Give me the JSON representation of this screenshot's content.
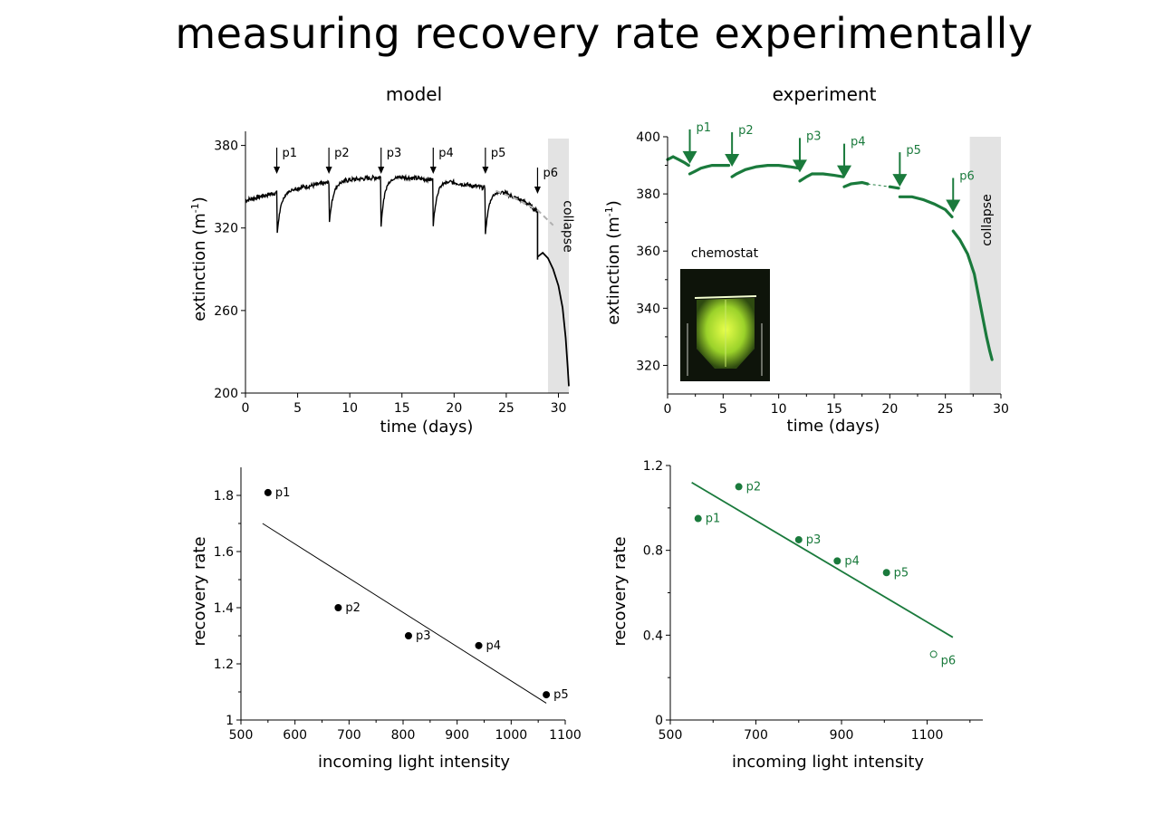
{
  "page": {
    "title": "measuring recovery rate experimentally"
  },
  "colors": {
    "model": "#000000",
    "experiment": "#1a7a3c",
    "collapse_band": "#e3e3e3",
    "trend": "#b0b0b0"
  },
  "chart_data": [
    {
      "id": "model_timeseries",
      "type": "line",
      "title": "model",
      "xlabel": "time (days)",
      "ylabel_base": "extinction (m",
      "ylabel_sup": "-1",
      "ylabel_close": ")",
      "xlim": [
        0,
        31
      ],
      "ylim": [
        200,
        385
      ],
      "xticks": [
        0,
        5,
        10,
        15,
        20,
        25,
        30
      ],
      "yticks": [
        200,
        260,
        320,
        380
      ],
      "collapse_region": {
        "x": [
          29,
          31
        ],
        "label": "collapse"
      },
      "baseline": {
        "x": [
          0,
          2,
          5,
          8,
          10,
          13,
          15,
          18,
          20,
          23,
          25,
          27,
          28
        ],
        "y": [
          340,
          344,
          349,
          353,
          355,
          357,
          357,
          355,
          353,
          349,
          345,
          338,
          332
        ]
      },
      "pulses": [
        {
          "label": "p1",
          "day": 3,
          "depth": 312
        },
        {
          "label": "p2",
          "day": 8,
          "depth": 320
        },
        {
          "label": "p3",
          "day": 13,
          "depth": 322
        },
        {
          "label": "p4",
          "day": 18,
          "depth": 322
        },
        {
          "label": "p5",
          "day": 23,
          "depth": 315
        },
        {
          "label": "p6",
          "day": 28,
          "depth": 297
        }
      ],
      "collapse_curve": {
        "x": [
          28,
          28.5,
          29.0,
          29.5,
          30.0,
          30.4,
          30.7,
          30.9,
          31.0
        ],
        "y": [
          299,
          302,
          298,
          290,
          278,
          262,
          240,
          218,
          205
        ]
      },
      "trend": {
        "x": [
          24,
          26,
          28,
          29.5
        ],
        "y": [
          347,
          341,
          333,
          322
        ]
      }
    },
    {
      "id": "experiment_timeseries",
      "type": "line",
      "title": "experiment",
      "xlabel": "time (days)",
      "ylabel_base": "extinction (m",
      "ylabel_sup": "-1",
      "ylabel_close": ")",
      "xlim": [
        0,
        30
      ],
      "ylim": [
        310,
        400
      ],
      "xticks": [
        0,
        5,
        10,
        15,
        20,
        25,
        30
      ],
      "yticks": [
        320,
        340,
        360,
        380,
        400
      ],
      "collapse_region": {
        "x": [
          27.2,
          30
        ],
        "label": "collapse"
      },
      "inset_label": "chemostat",
      "segments": [
        {
          "x": [
            0,
            0.5,
            1.0,
            1.5,
            1.9
          ],
          "y": [
            392,
            393,
            392,
            391,
            390
          ]
        },
        {
          "x": [
            2.0,
            2.5,
            3.0,
            3.5,
            4.0,
            4.5,
            5.0,
            5.5
          ],
          "y": [
            387,
            388,
            389,
            389.5,
            390,
            390,
            390,
            390
          ]
        },
        {
          "x": [
            5.8,
            6.2,
            7.0,
            8.0,
            9.0,
            10.0,
            11.0,
            11.8
          ],
          "y": [
            386,
            387,
            388.5,
            389.5,
            390,
            390,
            389.5,
            389
          ]
        },
        {
          "x": [
            11.9,
            12.5,
            13.0,
            14.0,
            15.0,
            15.8
          ],
          "y": [
            384.5,
            386,
            387,
            387,
            386.5,
            386
          ]
        },
        {
          "x": [
            15.9,
            16.5,
            17.5,
            18.0
          ],
          "y": [
            382.5,
            383.5,
            384,
            383.5
          ]
        },
        {
          "x": [
            20.0,
            20.8
          ],
          "y": [
            382.5,
            382
          ]
        },
        {
          "x": [
            20.9,
            22.0,
            23.0,
            24.0,
            25.0,
            25.6
          ],
          "y": [
            379,
            379,
            378,
            376.5,
            374.5,
            372
          ]
        },
        {
          "x": [
            25.7,
            26.3,
            27.0,
            27.6,
            28.0,
            28.4,
            28.7,
            29.0,
            29.2
          ],
          "y": [
            367,
            364,
            359,
            352,
            344,
            336,
            330,
            325,
            322
          ]
        }
      ],
      "trend": {
        "x": [
          18.0,
          19.0,
          20.0
        ],
        "y": [
          383.5,
          383,
          382.5
        ]
      },
      "pulses": [
        {
          "label": "p1",
          "day": 2.0,
          "ext": 388
        },
        {
          "label": "p2",
          "day": 5.8,
          "ext": 387
        },
        {
          "label": "p3",
          "day": 11.9,
          "ext": 385
        },
        {
          "label": "p4",
          "day": 15.9,
          "ext": 383
        },
        {
          "label": "p5",
          "day": 20.9,
          "ext": 380
        },
        {
          "label": "p6",
          "day": 25.7,
          "ext": 371
        }
      ]
    },
    {
      "id": "model_recovery",
      "type": "scatter",
      "xlabel": "incoming light intensity",
      "ylabel": "recovery rate",
      "xlim": [
        500,
        1100
      ],
      "ylim": [
        1,
        1.9
      ],
      "xticks": [
        500,
        600,
        700,
        800,
        900,
        1000,
        1100
      ],
      "yticks": [
        1,
        1.2,
        1.4,
        1.6,
        1.8
      ],
      "ytick_labels": [
        "1",
        "1.2",
        "1.4",
        "1.6",
        "1.8"
      ],
      "points": [
        {
          "label": "p1",
          "x": 550,
          "y": 1.81,
          "filled": true
        },
        {
          "label": "p2",
          "x": 680,
          "y": 1.4,
          "filled": true
        },
        {
          "label": "p3",
          "x": 810,
          "y": 1.3,
          "filled": true
        },
        {
          "label": "p4",
          "x": 940,
          "y": 1.265,
          "filled": true
        },
        {
          "label": "p5",
          "x": 1065,
          "y": 1.09,
          "filled": true
        }
      ],
      "fit": {
        "x": [
          540,
          1065
        ],
        "y": [
          1.7,
          1.06
        ]
      }
    },
    {
      "id": "experiment_recovery",
      "type": "scatter",
      "xlabel": "incoming light intensity",
      "ylabel": "recovery rate",
      "xlim": [
        500,
        1230
      ],
      "ylim": [
        0,
        1.2
      ],
      "xticks": [
        500,
        700,
        900,
        1100
      ],
      "yticks": [
        0,
        0.4,
        0.8,
        1.2
      ],
      "ytick_labels": [
        "0",
        "0.4",
        "0.8",
        "1.2"
      ],
      "points": [
        {
          "label": "p1",
          "x": 565,
          "y": 0.95,
          "filled": true
        },
        {
          "label": "p2",
          "x": 660,
          "y": 1.1,
          "filled": true
        },
        {
          "label": "p3",
          "x": 800,
          "y": 0.85,
          "filled": true
        },
        {
          "label": "p4",
          "x": 890,
          "y": 0.75,
          "filled": true
        },
        {
          "label": "p5",
          "x": 1005,
          "y": 0.695,
          "filled": true
        },
        {
          "label": "p6",
          "x": 1115,
          "y": 0.31,
          "filled": false
        }
      ],
      "fit": {
        "x": [
          550,
          1160
        ],
        "y": [
          1.12,
          0.39
        ]
      }
    }
  ]
}
